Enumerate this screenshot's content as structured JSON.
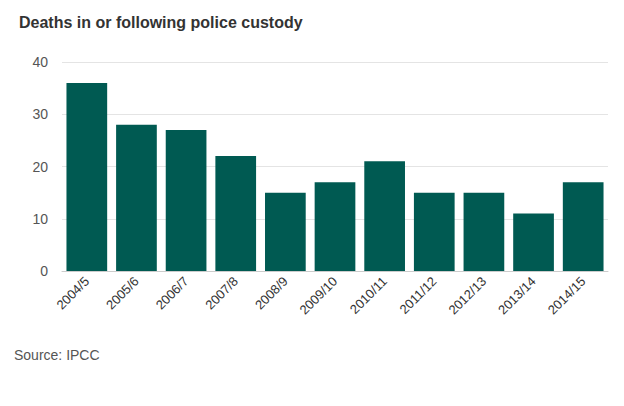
{
  "chart_data": {
    "type": "bar",
    "title": "Deaths in or following police custody",
    "source": "Source: IPCC",
    "categories": [
      "2004/5",
      "2005/6",
      "2006/7",
      "2007/8",
      "2008/9",
      "2009/10",
      "2010/11",
      "2011/12",
      "2012/13",
      "2013/14",
      "2014/15"
    ],
    "values": [
      36,
      28,
      27,
      22,
      15,
      17,
      21,
      15,
      15,
      11,
      17
    ],
    "color": "#005a52",
    "ylim": [
      0,
      40
    ],
    "yticks": [
      0,
      10,
      20,
      30,
      40
    ],
    "grid": true
  }
}
